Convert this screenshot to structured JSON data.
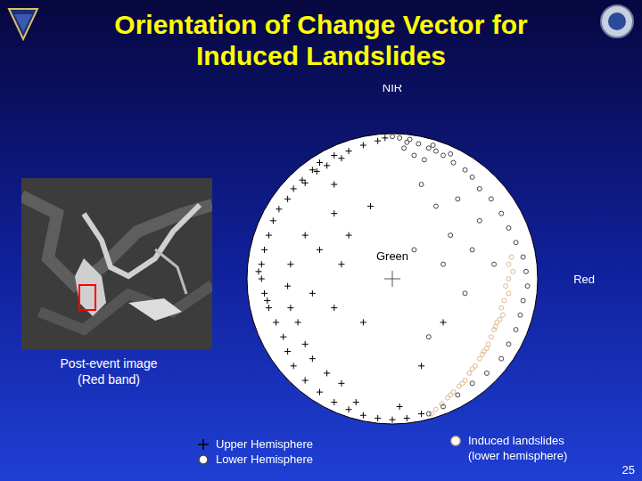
{
  "chart_data": {
    "type": "scatter",
    "title": "Orientation of Change Vector for Induced Landslides",
    "xlim": [
      -1,
      1
    ],
    "ylim": [
      -1,
      1
    ],
    "tick_labels": false,
    "grid": false,
    "legend": "bottom",
    "annotations": [
      {
        "text": "NIR",
        "x": 0,
        "y": 1.27
      },
      {
        "text": "Green",
        "x": 0,
        "y": 0.11
      },
      {
        "text": "Red",
        "x": 1.32,
        "y": -0.05
      }
    ],
    "series": [
      {
        "name": "Upper Hemisphere",
        "color": "#000000",
        "marker": "cross",
        "values": [
          [
            -0.05,
            0.97
          ],
          [
            -0.1,
            0.95
          ],
          [
            -0.2,
            0.92
          ],
          [
            -0.3,
            0.88
          ],
          [
            -0.4,
            0.85
          ],
          [
            -0.5,
            0.8
          ],
          [
            -0.55,
            0.75
          ],
          [
            -0.62,
            0.68
          ],
          [
            -0.68,
            0.62
          ],
          [
            -0.72,
            0.55
          ],
          [
            -0.78,
            0.48
          ],
          [
            -0.82,
            0.4
          ],
          [
            -0.85,
            0.3
          ],
          [
            -0.88,
            0.2
          ],
          [
            -0.9,
            0.1
          ],
          [
            -0.9,
            0.0
          ],
          [
            -0.88,
            -0.1
          ],
          [
            -0.85,
            -0.2
          ],
          [
            -0.8,
            -0.3
          ],
          [
            -0.75,
            -0.4
          ],
          [
            -0.72,
            -0.5
          ],
          [
            -0.68,
            -0.6
          ],
          [
            -0.6,
            -0.7
          ],
          [
            -0.5,
            -0.78
          ],
          [
            -0.4,
            -0.85
          ],
          [
            -0.3,
            -0.9
          ],
          [
            -0.2,
            -0.94
          ],
          [
            -0.1,
            -0.96
          ],
          [
            0.0,
            -0.97
          ],
          [
            0.1,
            -0.96
          ],
          [
            0.2,
            -0.93
          ],
          [
            -0.45,
            0.78
          ],
          [
            -0.52,
            0.74
          ],
          [
            -0.35,
            0.83
          ],
          [
            -0.6,
            0.66
          ],
          [
            -0.92,
            0.05
          ],
          [
            -0.86,
            -0.15
          ],
          [
            -0.7,
            0.1
          ],
          [
            -0.72,
            -0.05
          ],
          [
            -0.7,
            -0.2
          ],
          [
            -0.65,
            -0.3
          ],
          [
            -0.6,
            -0.45
          ],
          [
            -0.55,
            -0.55
          ],
          [
            -0.45,
            -0.65
          ],
          [
            -0.35,
            -0.72
          ],
          [
            -0.4,
            0.45
          ],
          [
            -0.3,
            0.3
          ],
          [
            -0.35,
            0.1
          ],
          [
            -0.5,
            0.2
          ],
          [
            -0.2,
            -0.3
          ],
          [
            -0.4,
            -0.2
          ],
          [
            0.35,
            -0.3
          ],
          [
            0.2,
            -0.6
          ],
          [
            -0.15,
            0.5
          ],
          [
            -0.4,
            0.65
          ],
          [
            -0.6,
            0.3
          ],
          [
            -0.55,
            -0.1
          ],
          [
            0.05,
            -0.88
          ],
          [
            -0.25,
            -0.85
          ]
        ]
      },
      {
        "name": "Lower Hemisphere",
        "color": "#444444",
        "marker": "circle",
        "values": [
          [
            0.0,
            0.98
          ],
          [
            0.05,
            0.97
          ],
          [
            0.12,
            0.96
          ],
          [
            0.18,
            0.93
          ],
          [
            0.25,
            0.9
          ],
          [
            0.3,
            0.88
          ],
          [
            0.08,
            0.9
          ],
          [
            0.15,
            0.85
          ],
          [
            0.22,
            0.82
          ],
          [
            0.35,
            0.85
          ],
          [
            0.42,
            0.8
          ],
          [
            0.5,
            0.75
          ],
          [
            0.55,
            0.7
          ],
          [
            0.6,
            0.62
          ],
          [
            0.68,
            0.55
          ],
          [
            0.75,
            0.45
          ],
          [
            0.8,
            0.35
          ],
          [
            0.85,
            0.25
          ],
          [
            0.9,
            0.15
          ],
          [
            0.92,
            0.05
          ],
          [
            0.93,
            -0.05
          ],
          [
            0.9,
            -0.15
          ],
          [
            0.88,
            -0.25
          ],
          [
            0.85,
            -0.35
          ],
          [
            0.8,
            -0.45
          ],
          [
            0.75,
            -0.55
          ],
          [
            0.65,
            -0.65
          ],
          [
            0.55,
            -0.72
          ],
          [
            0.45,
            -0.8
          ],
          [
            0.35,
            -0.88
          ],
          [
            0.25,
            -0.93
          ],
          [
            0.4,
            0.3
          ],
          [
            0.3,
            0.5
          ],
          [
            0.55,
            0.2
          ],
          [
            0.5,
            -0.1
          ],
          [
            0.35,
            0.1
          ],
          [
            0.6,
            0.4
          ],
          [
            0.45,
            0.55
          ],
          [
            0.7,
            0.1
          ],
          [
            0.25,
            -0.4
          ],
          [
            0.15,
            0.2
          ],
          [
            0.2,
            0.65
          ],
          [
            0.1,
            0.94
          ],
          [
            0.28,
            0.92
          ],
          [
            0.4,
            0.86
          ]
        ]
      },
      {
        "name": "Induced landslides (lower hemisphere)",
        "color": "#e0b888",
        "marker": "circle",
        "values": [
          [
            0.82,
            0.15
          ],
          [
            0.8,
            0.1
          ],
          [
            0.83,
            0.05
          ],
          [
            0.8,
            0.0
          ],
          [
            0.78,
            -0.05
          ],
          [
            0.8,
            -0.1
          ],
          [
            0.77,
            -0.15
          ],
          [
            0.75,
            -0.2
          ],
          [
            0.76,
            -0.25
          ],
          [
            0.72,
            -0.3
          ],
          [
            0.7,
            -0.35
          ],
          [
            0.68,
            -0.4
          ],
          [
            0.66,
            -0.45
          ],
          [
            0.63,
            -0.5
          ],
          [
            0.6,
            -0.55
          ],
          [
            0.57,
            -0.6
          ],
          [
            0.53,
            -0.65
          ],
          [
            0.5,
            -0.7
          ],
          [
            0.46,
            -0.74
          ],
          [
            0.42,
            -0.78
          ],
          [
            0.38,
            -0.82
          ],
          [
            0.34,
            -0.86
          ],
          [
            0.3,
            -0.9
          ],
          [
            0.27,
            -0.93
          ],
          [
            0.74,
            -0.28
          ],
          [
            0.65,
            -0.48
          ],
          [
            0.55,
            -0.62
          ],
          [
            0.48,
            -0.72
          ],
          [
            0.4,
            -0.8
          ],
          [
            0.71,
            -0.33
          ],
          [
            0.62,
            -0.52
          ]
        ]
      }
    ]
  },
  "slide": {
    "image_caption": [
      "Post-event image",
      "(Red band)"
    ],
    "page_number": "25"
  }
}
